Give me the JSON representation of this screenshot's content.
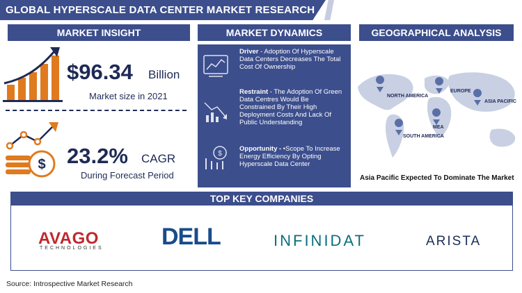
{
  "title": "GLOBAL HYPERSCALE DATA CENTER MARKET RESEARCH REPORT",
  "market_insight": {
    "heading": "MARKET INSIGHT",
    "value": "$96.34",
    "unit": "Billion",
    "sub": "Market size in 2021",
    "cagr": "23.2%",
    "cagr_unit": "CAGR",
    "cagr_sub": "During Forecast Period"
  },
  "market_dynamics": {
    "heading": "MARKET DYNAMICS",
    "driver_label": "Driver",
    "driver_text": " - Adoption Of Hyperscale Data Centers Decreases The Total Cost Of Ownership",
    "restraint_label": "Restraint",
    "restraint_text": " - The Adoption Of Green Data Centres Would Be Constrained By Their High Deployment Costs And Lack Of Public Understanding",
    "opportunity_label": "Opportunity -",
    "opportunity_text": " •Scope To Increase Energy Efficiency By Opting Hyperscale Data Center"
  },
  "geographical_analysis": {
    "heading": "GEOGRAPHICAL ANALYSIS",
    "regions": [
      "NORTH AMERICA",
      "EUROPE",
      "ASIA PACIFIC",
      "MEA",
      "SOUTH AMERICA"
    ],
    "caption": "Asia Pacific Expected To Dominate The Market"
  },
  "top_companies": {
    "heading": "TOP KEY COMPANIES",
    "logos": [
      "AVAGO",
      "TECHNOLOGIES",
      "DELL",
      "INFINIDAT",
      "ARISTA"
    ]
  },
  "source": "Source: Introspective Market Research",
  "colors": {
    "navy": "#3c4e8c",
    "orange": "#e07a1f",
    "map": "#c9d0e3"
  }
}
